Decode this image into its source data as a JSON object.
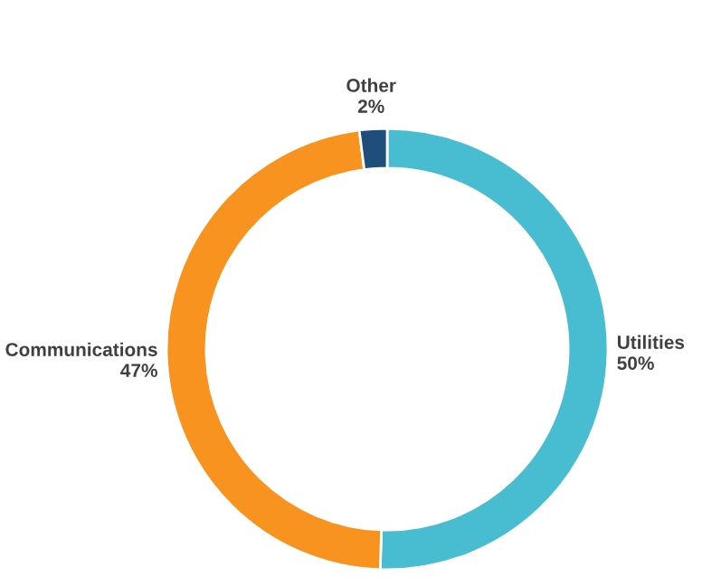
{
  "chart_data": {
    "type": "donut",
    "categories": [
      "Utilities",
      "Communications",
      "Other"
    ],
    "values": [
      50,
      47,
      2
    ],
    "value_labels": [
      "50%",
      "47%",
      "2%"
    ],
    "colors": [
      "#48bcd1",
      "#f7931e",
      "#1f4e7a"
    ],
    "legend": false
  }
}
